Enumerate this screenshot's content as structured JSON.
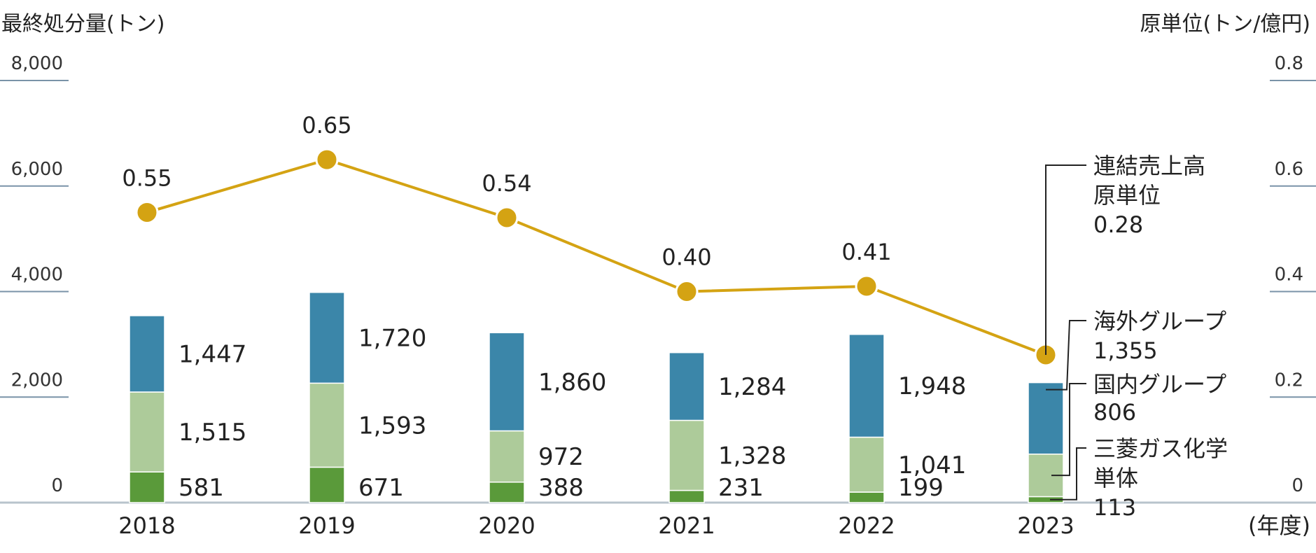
{
  "chart_data": {
    "type": "bar",
    "stacked": true,
    "categories": [
      "2018",
      "2019",
      "2020",
      "2021",
      "2022",
      "2023"
    ],
    "x_unit": "(年度)",
    "y_left": {
      "label": "最終処分量(トン)",
      "range": [
        0,
        8000
      ],
      "ticks": [
        "0",
        "2,000",
        "4,000",
        "6,000",
        "8,000"
      ],
      "tick_values": [
        0,
        2000,
        4000,
        6000,
        8000
      ]
    },
    "y_right": {
      "label": "原単位(トン/億円)",
      "range": [
        0,
        0.8
      ],
      "ticks": [
        "0",
        "0.2",
        "0.4",
        "0.6",
        "0.8"
      ],
      "tick_values": [
        0,
        0.2,
        0.4,
        0.6,
        0.8
      ]
    },
    "series": [
      {
        "name": "三菱ガス化学単体",
        "color": "#5a9a3a",
        "values": [
          581,
          671,
          388,
          231,
          199,
          113
        ],
        "labels": [
          "581",
          "671",
          "388",
          "231",
          "199",
          "113"
        ]
      },
      {
        "name": "国内グループ",
        "color": "#adcb9a",
        "values": [
          1515,
          1593,
          972,
          1328,
          1041,
          806
        ],
        "labels": [
          "1,515",
          "1,593",
          "972",
          "1,328",
          "1,041",
          "806"
        ]
      },
      {
        "name": "海外グループ",
        "color": "#3b86a9",
        "values": [
          1447,
          1720,
          1860,
          1284,
          1948,
          1355
        ],
        "labels": [
          "1,447",
          "1,720",
          "1,860",
          "1,284",
          "1,948",
          "1,355"
        ]
      }
    ],
    "line": {
      "name": "連結売上高原単位",
      "color": "#d4a313",
      "values": [
        0.55,
        0.65,
        0.54,
        0.4,
        0.41,
        0.28
      ],
      "labels": [
        "0.55",
        "0.65",
        "0.54",
        "0.40",
        "0.41",
        "0.28"
      ]
    },
    "legend": {
      "line_lines": [
        "連結売上高",
        "原単位",
        "0.28"
      ],
      "overseas_lines": [
        "海外グループ",
        "1,355"
      ],
      "domestic_lines": [
        "国内グループ",
        "806"
      ],
      "parent_lines": [
        "三菱ガス化学",
        "単体",
        "113"
      ]
    },
    "grid": false
  }
}
